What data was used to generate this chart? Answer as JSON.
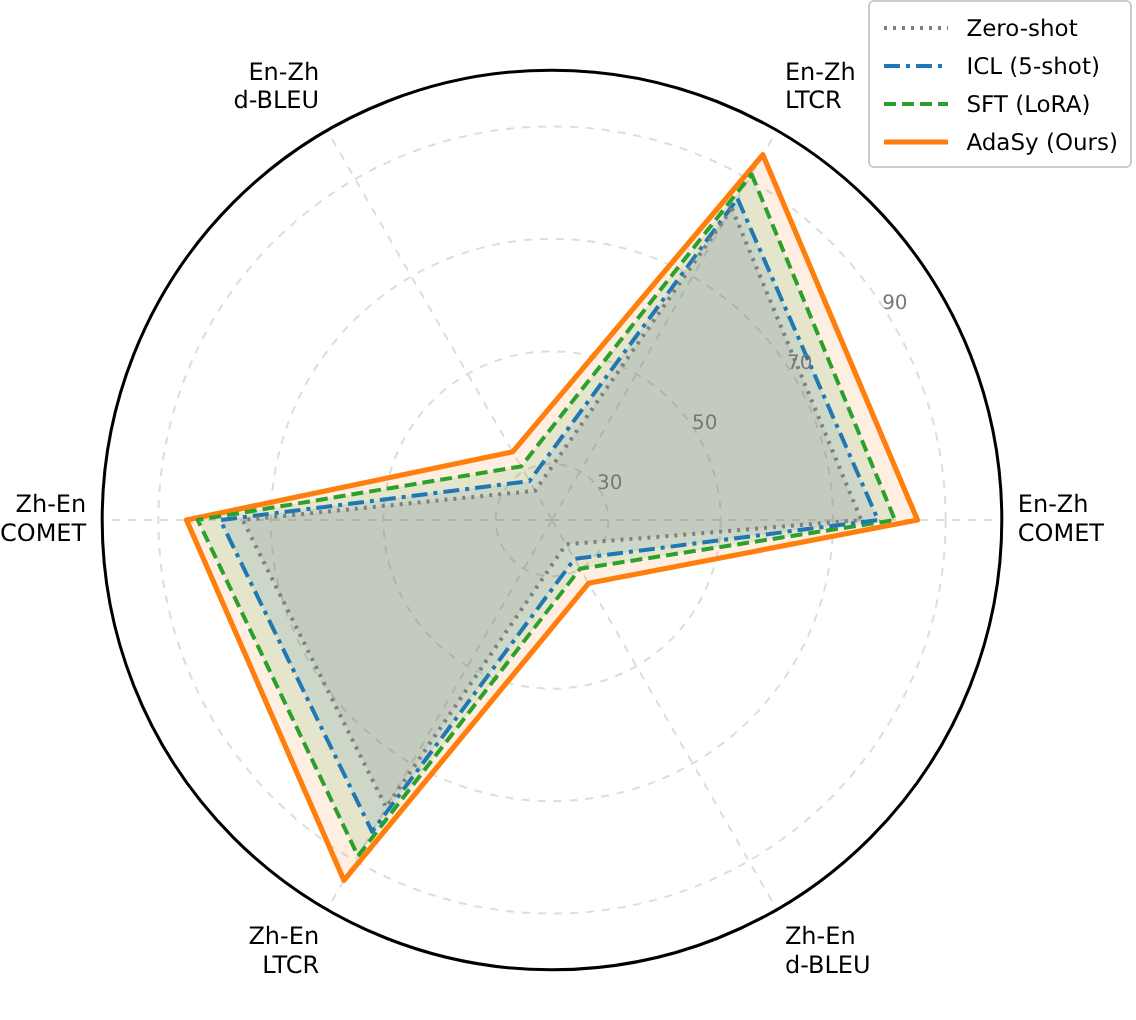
{
  "chart_data": {
    "type": "radar",
    "categories": [
      "En-Zh\nLTCR",
      "En-Zh\nCOMET",
      "Zh-En\nd-BLEU",
      "Zh-En\nLTCR",
      "Zh-En\nCOMET",
      "En-Zh\nd-BLEU"
    ],
    "series": [
      {
        "name": "Zero-shot",
        "color": "#7f7f7f",
        "line_style": "dotted",
        "values": [
          84,
          75,
          25,
          79,
          75,
          26
        ]
      },
      {
        "name": "ICL (5-shot)",
        "color": "#1f77b4",
        "line_style": "dashdot",
        "values": [
          86,
          78,
          28,
          84,
          79,
          28
        ]
      },
      {
        "name": "SFT (LoRA)",
        "color": "#2ca02c",
        "line_style": "dashed",
        "values": [
          91,
          81,
          30,
          89,
          83,
          31
        ]
      },
      {
        "name": "AdaSy (Ours)",
        "color": "#ff7f0e",
        "line_style": "solid",
        "values": [
          95,
          85,
          33,
          94,
          85,
          34
        ]
      }
    ],
    "ylim": [
      20,
      100
    ],
    "yticks": [
      30,
      50,
      70,
      90
    ],
    "grid": true,
    "legend": "top right",
    "marker": "none"
  }
}
